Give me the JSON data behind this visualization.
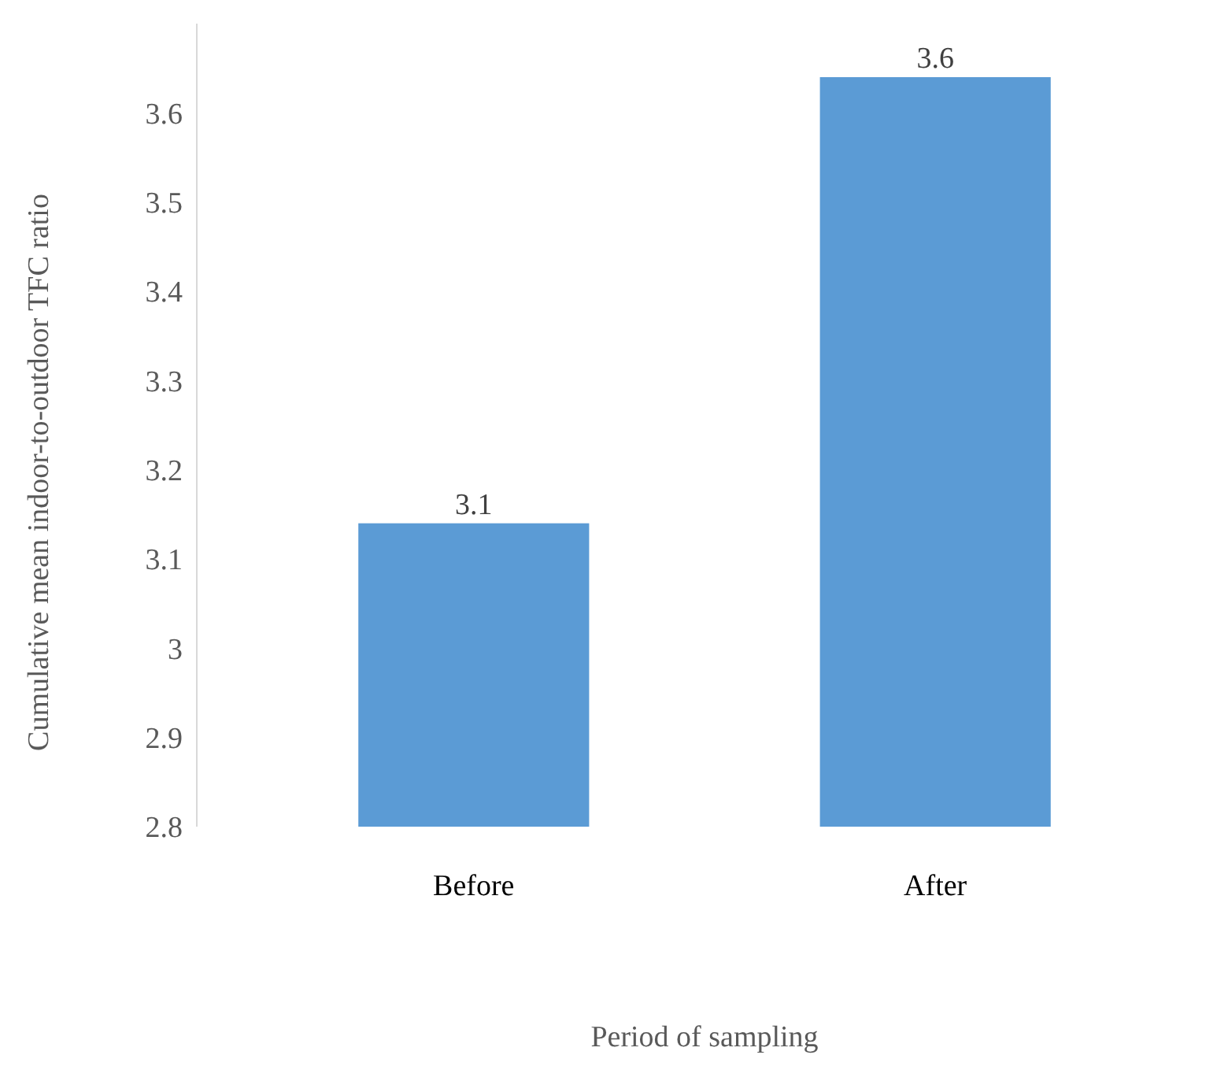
{
  "chart_data": {
    "type": "bar",
    "xlabel": "Period of sampling",
    "ylabel": "Cumulative mean indoor-to-outdoor TFC ratio",
    "categories": [
      "Before",
      "After"
    ],
    "values": [
      3.14,
      3.64
    ],
    "value_labels": [
      "3.1",
      "3.6"
    ],
    "color": "#5b9bd5",
    "ylim": [
      2.8,
      3.7
    ],
    "yticks": [
      2.8,
      2.9,
      {
        "value": 3,
        "label": "3"
      },
      3.1,
      3.2,
      3.3,
      3.4,
      3.5,
      3.6
    ],
    "grid": false
  }
}
